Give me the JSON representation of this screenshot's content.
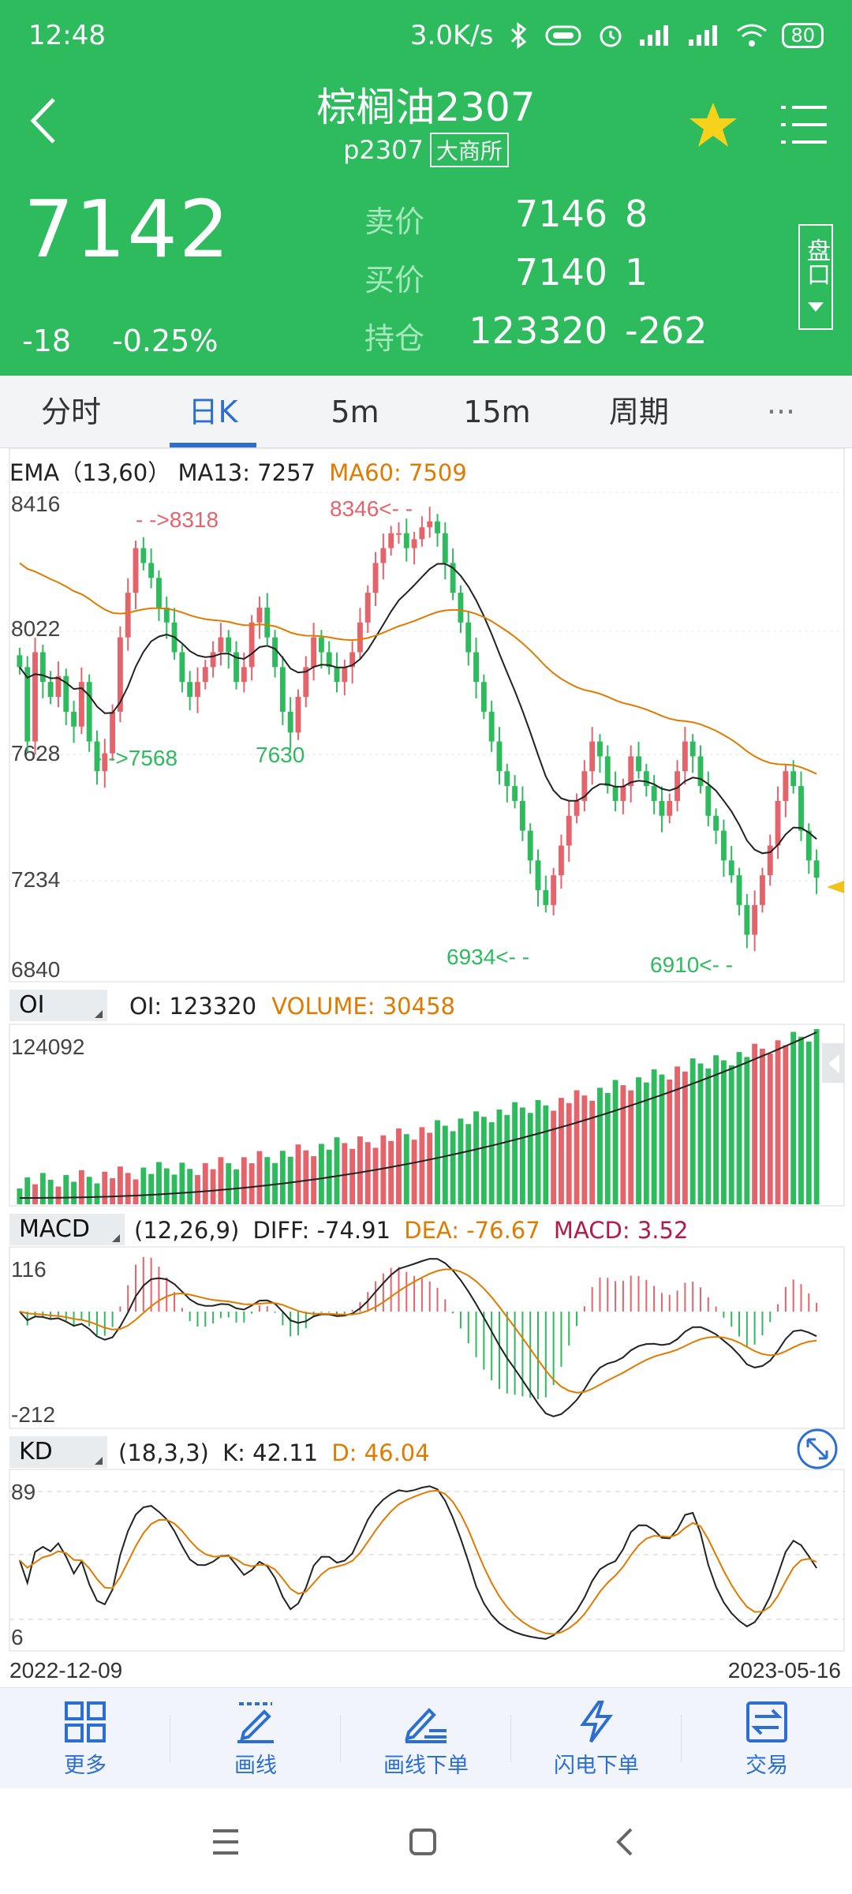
{
  "status": {
    "time": "12:48",
    "speed": "3.0K/s",
    "battery": "80"
  },
  "header": {
    "title": "棕榈油2307",
    "code": "p2307",
    "exchange": "大商所"
  },
  "quote": {
    "last": "7142",
    "change": "-18",
    "change_pct": "-0.25%",
    "sell_label": "卖价",
    "sell_price": "7146",
    "sell_vol": "8",
    "buy_label": "买价",
    "buy_price": "7140",
    "buy_vol": "1",
    "oi_label": "持仓",
    "oi_value": "123320",
    "oi_change": "-262",
    "pankou": "盘口"
  },
  "tabs": [
    "分时",
    "日K",
    "5m",
    "15m",
    "周期",
    "···"
  ],
  "main_chart": {
    "indicator": "EMA（13,60）",
    "ma13": "MA13: 7257",
    "ma60": "MA60: 7509",
    "y_ticks": [
      "8416",
      "8022",
      "7628",
      "7234",
      "6840"
    ],
    "annotations": {
      "high1": "- ->8318",
      "high2": "8346<- -",
      "low1": "- ->7568",
      "low2": "7630",
      "low3": "6934<- -",
      "low4": "6910<- -"
    }
  },
  "oi_panel": {
    "tag": "OI",
    "oi": "OI: 123320",
    "volume": "VOLUME: 30458",
    "y_top": "124092"
  },
  "macd_panel": {
    "tag": "MACD",
    "params": "(12,26,9)",
    "diff": "DIFF: -74.91",
    "dea": "DEA: -76.67",
    "macd": "MACD: 3.52",
    "y_top": "116",
    "y_bottom": "-212"
  },
  "kd_panel": {
    "tag": "KD",
    "params": "(18,3,3)",
    "k": "K: 42.11",
    "d": "D: 46.04",
    "y_top": "89",
    "y_bottom": "6"
  },
  "dates": {
    "start": "2022-12-09",
    "end": "2023-05-16"
  },
  "bottom_nav": [
    "更多",
    "画线",
    "画线下单",
    "闪电下单",
    "交易"
  ],
  "colors": {
    "brand_green": "#2dbb5e",
    "up": "#e5646b",
    "down": "#2dbb5e",
    "accent": "#2d6fd1",
    "ma60": "#e07b00"
  },
  "chart_data": [
    {
      "type": "candlestick",
      "title": "EMA（13,60）",
      "x_range": [
        "2022-12-09",
        "2023-05-16"
      ],
      "ylim": [
        6840,
        8416
      ],
      "closes": [
        7850,
        7600,
        7900,
        7800,
        7750,
        7820,
        7700,
        7650,
        7800,
        7600,
        7500,
        7560,
        7700,
        7950,
        8100,
        8250,
        8200,
        8150,
        8050,
        8000,
        7900,
        7800,
        7750,
        7800,
        7850,
        7900,
        7950,
        7900,
        7800,
        7850,
        8000,
        8050,
        7950,
        7850,
        7700,
        7630,
        7750,
        7850,
        7950,
        7900,
        7850,
        7800,
        7850,
        7900,
        8000,
        8100,
        8200,
        8250,
        8300,
        8300,
        8250,
        8280,
        8320,
        8340,
        8300,
        8200,
        8100,
        8000,
        7900,
        7800,
        7700,
        7600,
        7500,
        7450,
        7400,
        7300,
        7200,
        7100,
        7050,
        7150,
        7250,
        7350,
        7400,
        7500,
        7600,
        7550,
        7450,
        7400,
        7450,
        7550,
        7500,
        7450,
        7400,
        7350,
        7400,
        7500,
        7600,
        7550,
        7450,
        7350,
        7300,
        7200,
        7150,
        7050,
        6950,
        7050,
        7150,
        7250,
        7400,
        7500,
        7450,
        7300,
        7200,
        7142
      ],
      "ma13_last": 7257,
      "ma60_last": 7509,
      "labels": [
        "8318",
        "8346",
        "7568",
        "7630",
        "6934",
        "6910"
      ]
    },
    {
      "type": "bar",
      "title": "OI / VOLUME",
      "oi_last": 123320,
      "volume_last": 30458,
      "ylim_top": 124092
    },
    {
      "type": "line",
      "title": "MACD (12,26,9)",
      "ylim": [
        -212,
        116
      ],
      "diff_last": -74.91,
      "dea_last": -76.67,
      "macd_last": 3.52
    },
    {
      "type": "line",
      "title": "KD (18,3,3)",
      "ylim": [
        6,
        89
      ],
      "k_last": 42.11,
      "d_last": 46.04
    }
  ]
}
